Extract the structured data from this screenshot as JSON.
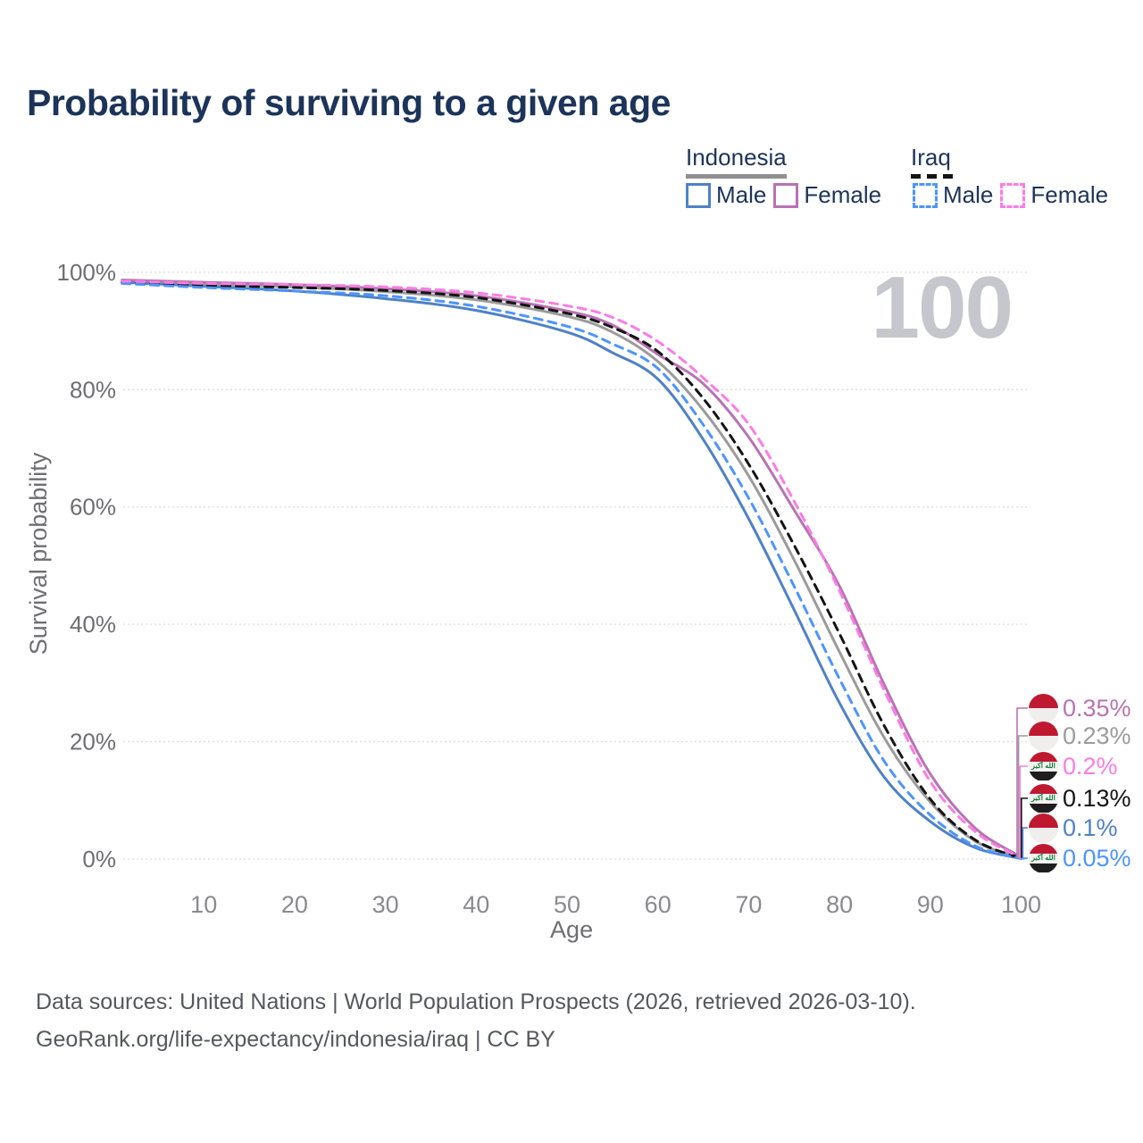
{
  "title": "Probability of surviving to a given age",
  "watermark": "100",
  "legend": {
    "groups": [
      {
        "label": "Indonesia",
        "line_style": "solid",
        "underline_color": "#8F8F8F",
        "items": [
          {
            "label": "Male",
            "color": "#4F81C7",
            "dashed": false
          },
          {
            "label": "Female",
            "color": "#B873B3",
            "dashed": false
          }
        ]
      },
      {
        "label": "Iraq",
        "line_style": "dashed",
        "underline_color": "#141414",
        "items": [
          {
            "label": "Male",
            "color": "#4D94FF",
            "dashed": true
          },
          {
            "label": "Female",
            "color": "#FB7DE3",
            "dashed": true
          }
        ]
      }
    ]
  },
  "chart_data": {
    "type": "line",
    "title": "Probability of surviving to a given age",
    "xlabel": "Age",
    "ylabel": "Survival probability",
    "xlim": [
      1,
      100
    ],
    "ylim": [
      0,
      100
    ],
    "x_ticks": [
      10,
      20,
      30,
      40,
      50,
      60,
      70,
      80,
      90,
      100
    ],
    "y_ticks_pct": [
      0,
      20,
      40,
      60,
      80,
      100
    ],
    "grid": "horizontal-only",
    "legend_position": "top-right",
    "x": [
      1,
      10,
      20,
      30,
      40,
      50,
      55,
      60,
      65,
      70,
      75,
      80,
      85,
      90,
      95,
      100
    ],
    "series": [
      {
        "name": "Indonesia",
        "color": "#9B9B9B",
        "dashed": false,
        "values": [
          98.5,
          98.0,
          97.5,
          96.7,
          95.3,
          92.5,
          89.8,
          84.8,
          76.5,
          65.3,
          51.0,
          35.3,
          20.5,
          9.7,
          3.0,
          0.23
        ]
      },
      {
        "name": "Indonesia Male",
        "color": "#4F81C7",
        "dashed": false,
        "values": [
          98.3,
          97.6,
          96.8,
          95.5,
          93.5,
          89.8,
          86.3,
          81.8,
          71.5,
          58.0,
          42.5,
          26.6,
          13.8,
          6.4,
          1.9,
          0.1
        ]
      },
      {
        "name": "Indonesia Female",
        "color": "#B873B3",
        "dashed": false,
        "values": [
          98.7,
          98.3,
          97.9,
          97.2,
          96.0,
          93.4,
          91.0,
          86.0,
          81.0,
          71.9,
          59.5,
          46.5,
          29.5,
          14.5,
          5.2,
          0.35
        ]
      },
      {
        "name": "Iraq",
        "color": "#141414",
        "dashed": true,
        "values": [
          98.3,
          97.8,
          97.4,
          96.9,
          95.7,
          93.0,
          90.6,
          86.5,
          78.5,
          67.3,
          53.5,
          38.4,
          22.5,
          10.2,
          3.2,
          0.13
        ]
      },
      {
        "name": "Iraq Male",
        "color": "#4D94FF",
        "dashed": true,
        "values": [
          98.1,
          97.4,
          96.8,
          96.0,
          94.2,
          90.8,
          87.8,
          83.6,
          74.0,
          61.5,
          46.5,
          30.7,
          16.5,
          7.5,
          2.2,
          0.05
        ]
      },
      {
        "name": "Iraq Female",
        "color": "#FB7DE3",
        "dashed": true,
        "values": [
          98.5,
          98.1,
          97.9,
          97.5,
          96.5,
          94.3,
          92.3,
          88.2,
          82.0,
          74.1,
          61.0,
          45.7,
          28.5,
          13.2,
          4.6,
          0.2
        ]
      }
    ],
    "end_labels": [
      {
        "text": "0.35%",
        "value_pct": 0.35,
        "color": "#B873B3",
        "flag": "indonesia",
        "series": "Indonesia Female"
      },
      {
        "text": "0.23%",
        "value_pct": 0.23,
        "color": "#9B9B9B",
        "flag": "indonesia",
        "series": "Indonesia"
      },
      {
        "text": "0.2%",
        "value_pct": 0.2,
        "color": "#FB7DE3",
        "flag": "iraq",
        "series": "Iraq Female"
      },
      {
        "text": "0.13%",
        "value_pct": 0.13,
        "color": "#141414",
        "flag": "iraq",
        "series": "Iraq"
      },
      {
        "text": "0.1%",
        "value_pct": 0.1,
        "color": "#4F81C7",
        "flag": "indonesia",
        "series": "Indonesia Male"
      },
      {
        "text": "0.05%",
        "value_pct": 0.05,
        "color": "#4D94FF",
        "flag": "iraq",
        "series": "Iraq Male"
      }
    ],
    "flag_script": "الله أكبر"
  },
  "footer": {
    "line1": "Data sources: United Nations | World Population Prospects (2026, retrieved 2026-03-10).",
    "line2": "GeoRank.org/life-expectancy/indonesia/iraq | CC BY"
  }
}
